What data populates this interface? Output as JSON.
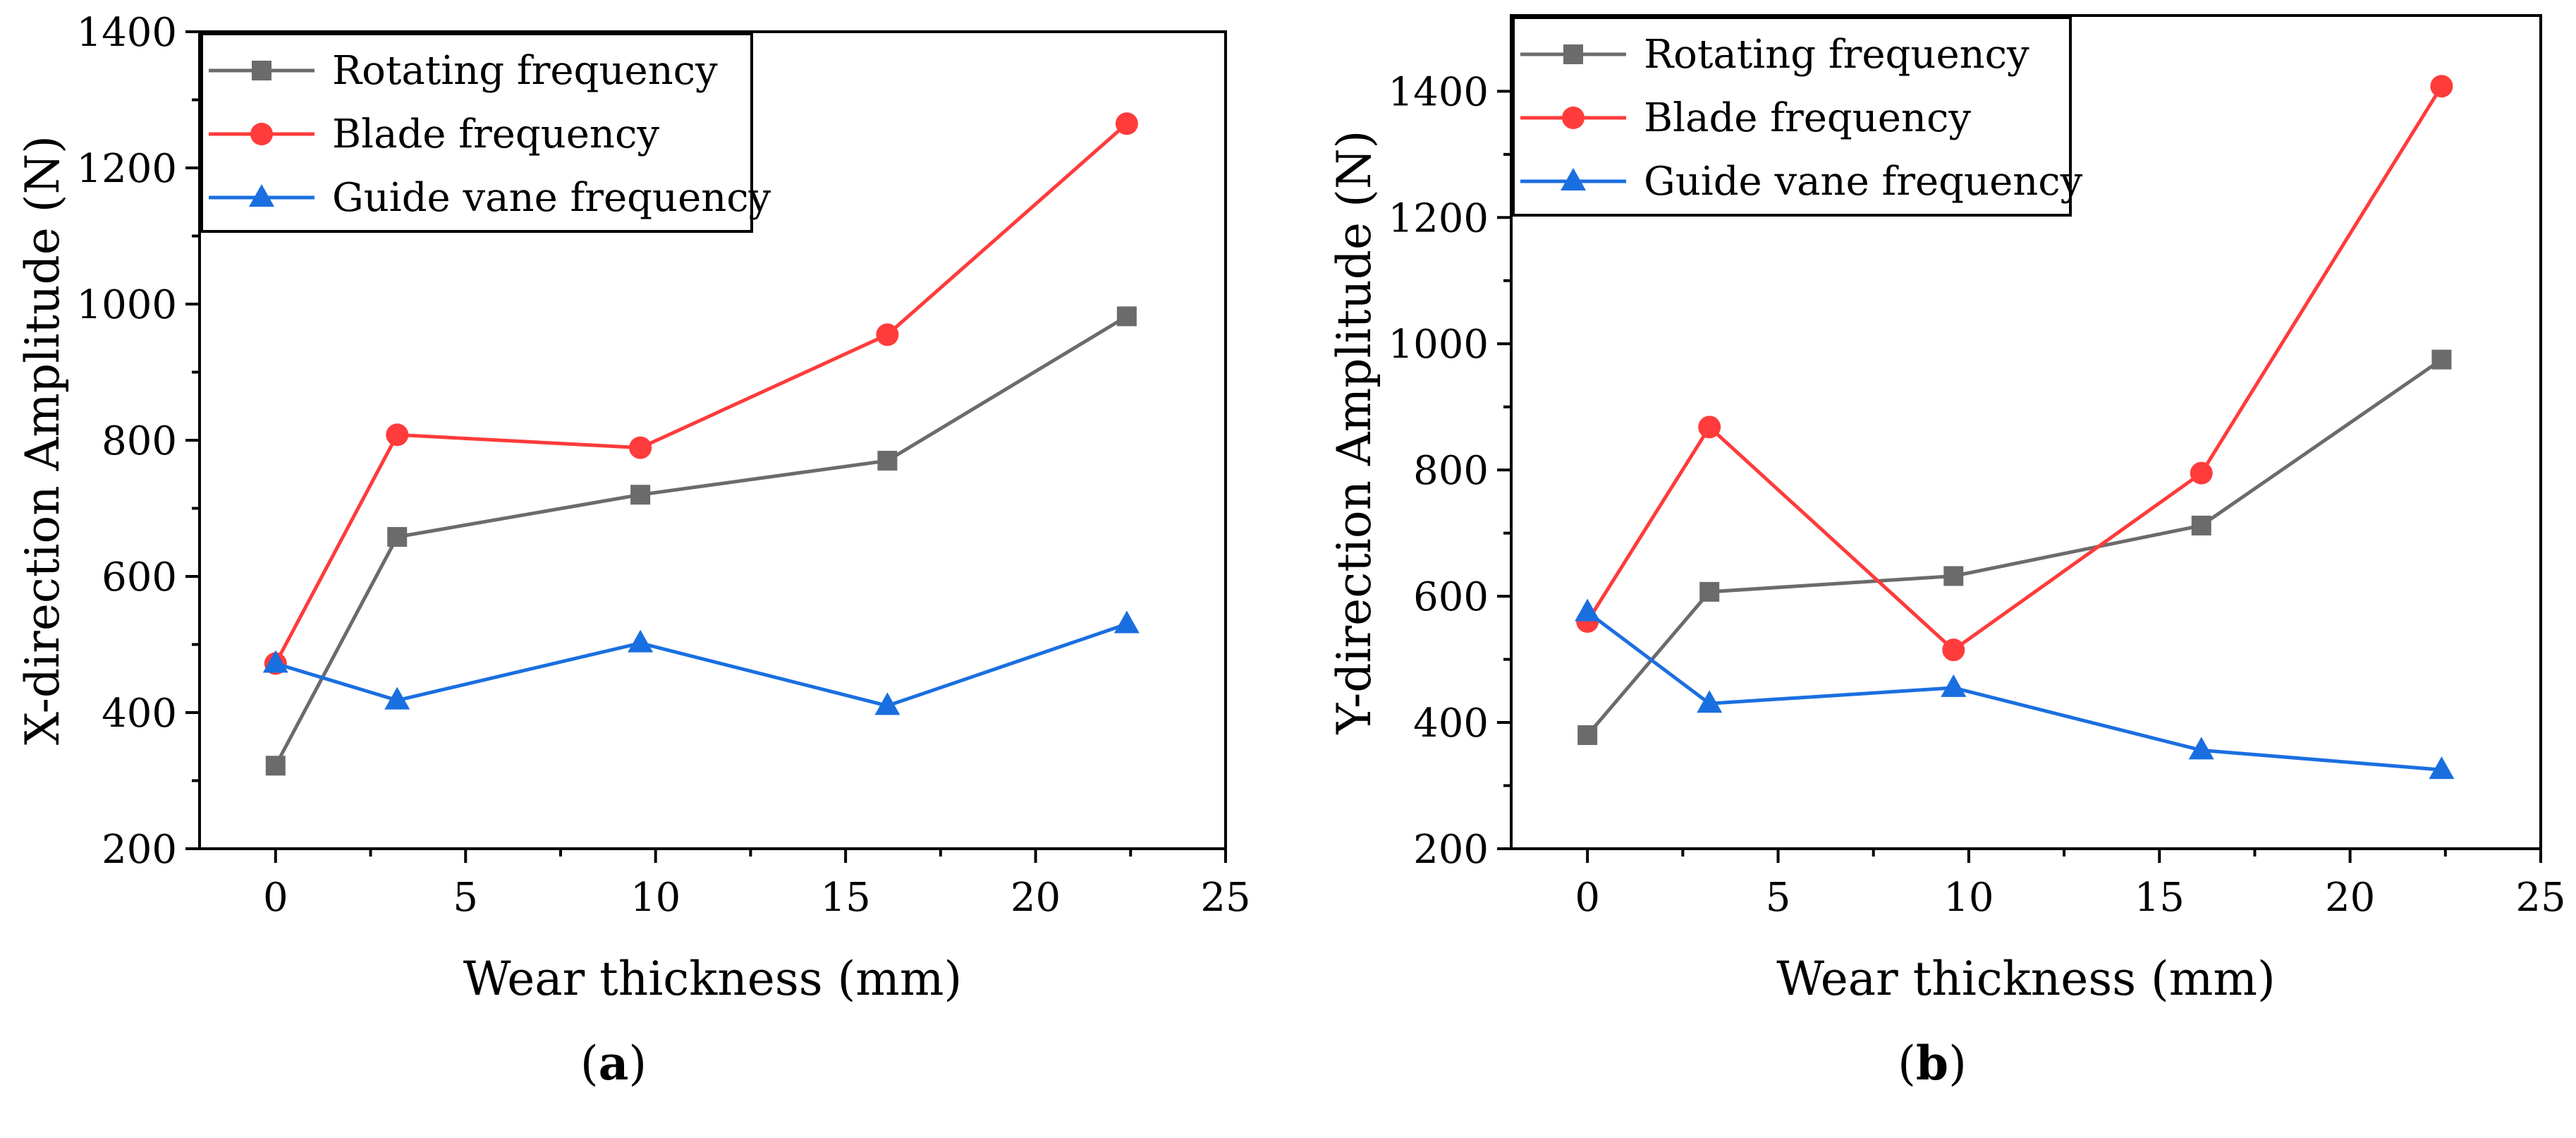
{
  "chart_data": [
    {
      "type": "line",
      "panel_label": "a",
      "xlabel": "Wear thickness (mm)",
      "ylabel": "X-direction Amplitude (N)",
      "xlim": [
        -2,
        25
      ],
      "ylim": [
        200,
        1400
      ],
      "xticks": [
        0,
        5,
        10,
        15,
        20,
        25
      ],
      "yticks": [
        200,
        400,
        600,
        800,
        1000,
        1200,
        1400
      ],
      "legend_position": "top-left",
      "x": [
        0,
        3.2,
        9.6,
        16.1,
        22.4
      ],
      "series": [
        {
          "name": "Rotating frequency",
          "color": "#6b6b6b",
          "marker": "square",
          "values": [
            322,
            658,
            720,
            770,
            982
          ]
        },
        {
          "name": "Blade frequency",
          "color": "#ff3b3b",
          "marker": "circle",
          "values": [
            472,
            808,
            789,
            955,
            1265
          ]
        },
        {
          "name": "Guide vane frequency",
          "color": "#1a6fe0",
          "marker": "triangle",
          "values": [
            472,
            418,
            502,
            410,
            530
          ]
        }
      ]
    },
    {
      "type": "line",
      "panel_label": "b",
      "xlabel": "Wear thickness (mm)",
      "ylabel": "Y-direction Amplitude (N)",
      "xlim": [
        -2,
        25
      ],
      "ylim": [
        200,
        1520
      ],
      "xticks": [
        0,
        5,
        10,
        15,
        20,
        25
      ],
      "yticks": [
        200,
        400,
        600,
        800,
        1000,
        1200,
        1400
      ],
      "legend_position": "top-left",
      "x": [
        0,
        3.2,
        9.6,
        16.1,
        22.4
      ],
      "series": [
        {
          "name": "Rotating frequency",
          "color": "#6b6b6b",
          "marker": "square",
          "values": [
            380,
            607,
            632,
            712,
            975
          ]
        },
        {
          "name": "Blade frequency",
          "color": "#ff3b3b",
          "marker": "circle",
          "values": [
            560,
            868,
            515,
            795,
            1408
          ]
        },
        {
          "name": "Guide vane frequency",
          "color": "#1a6fe0",
          "marker": "triangle",
          "values": [
            575,
            430,
            455,
            356,
            325
          ]
        }
      ]
    }
  ]
}
